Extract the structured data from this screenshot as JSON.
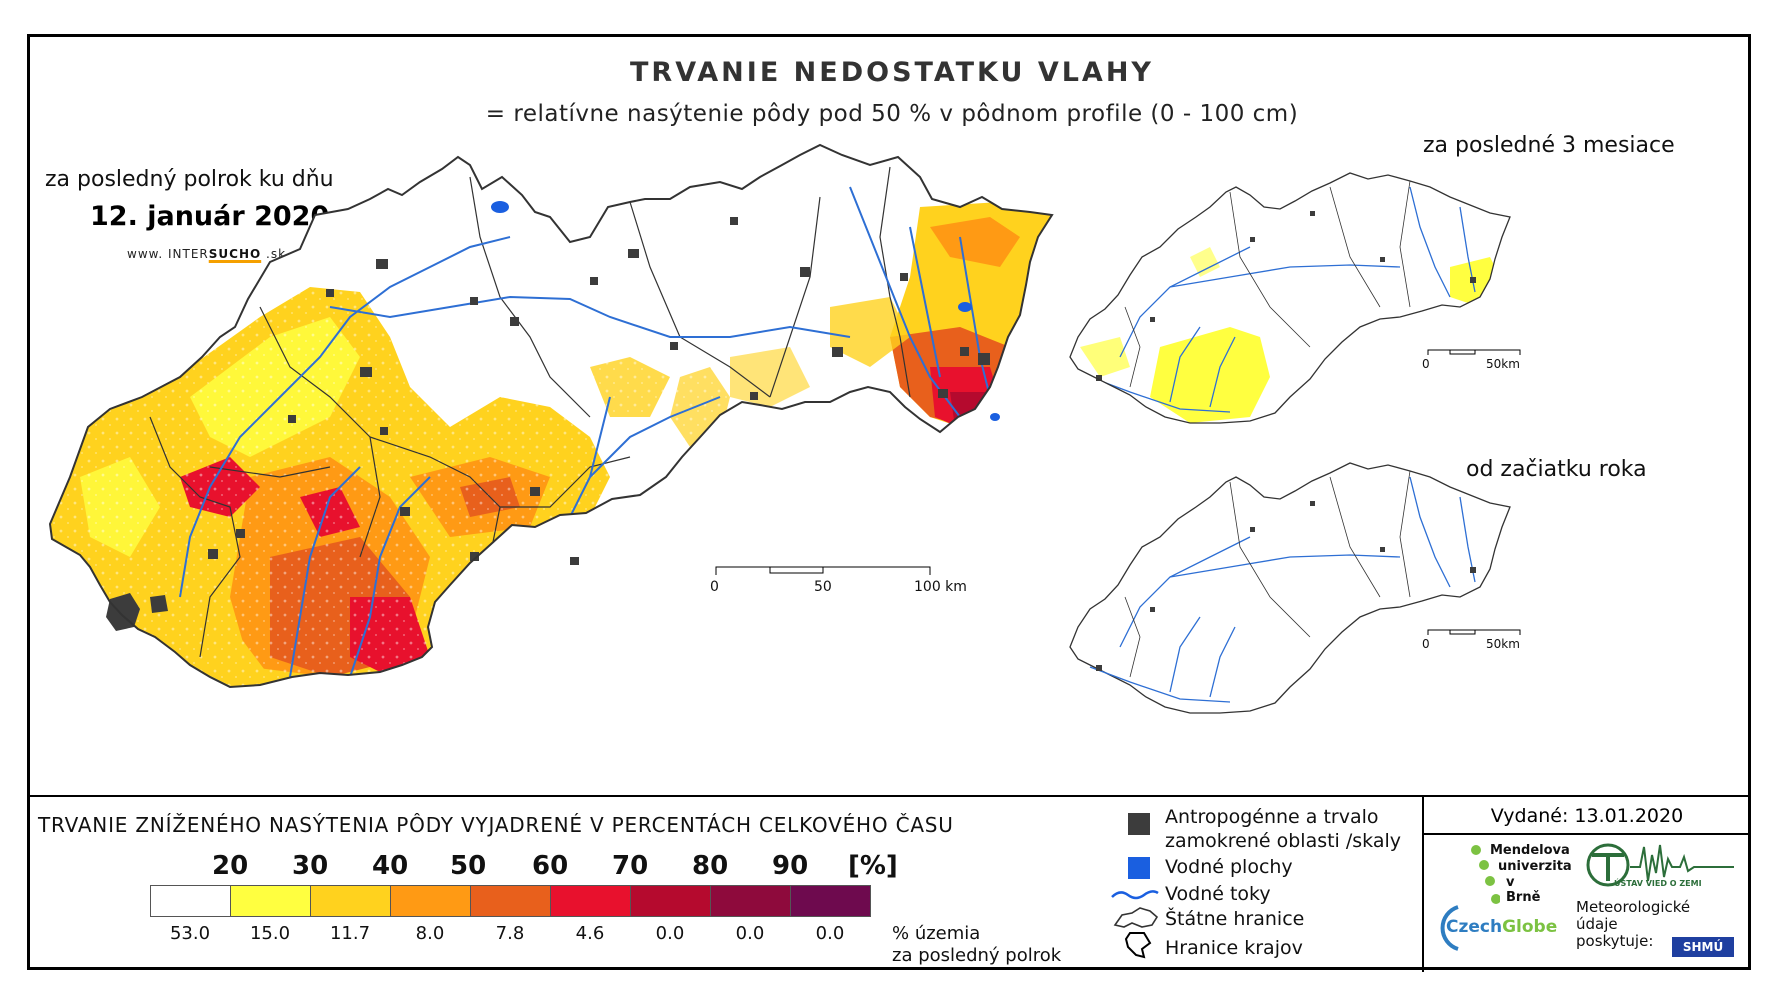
{
  "title": "TRVANIE NEDOSTATKU VLAHY",
  "subtitle": "= relatívne nasýtenie pôdy pod 50 % v pôdnom profile (0 - 100 cm)",
  "main_map": {
    "period_label": "za posledný polrok ku dňu",
    "date": "12. január 2020",
    "website": {
      "prefix": "www. INTER",
      "highlight": "SUCHO",
      "suffix": " .sk"
    },
    "scale": {
      "ticks": [
        "0",
        "50",
        "100 km"
      ]
    }
  },
  "inset_3m": {
    "label": "za posledné 3 mesiace",
    "scale": {
      "ticks": [
        "0",
        "50km"
      ]
    }
  },
  "inset_year": {
    "label": "od začiatku roka",
    "scale": {
      "ticks": [
        "0",
        "50km"
      ]
    }
  },
  "legend": {
    "title": "TRVANIE ZNÍŽENÉHO NASÝTENIA PÔDY VYJADRENÉ V PERCENTÁCH CELKOVÉHO ČASU",
    "breaks": [
      "20",
      "30",
      "40",
      "50",
      "60",
      "70",
      "80",
      "90",
      "[%]"
    ],
    "class_colors": [
      "#ffffff",
      "#ffff40",
      "#ffd21e",
      "#ff9a14",
      "#e8601c",
      "#e8112d",
      "#b50a2e",
      "#8e0a3c",
      "#6e0a4e"
    ],
    "area_percent": [
      "53.0",
      "15.0",
      "11.7",
      "8.0",
      "7.8",
      "4.6",
      "0.0",
      "0.0",
      "0.0"
    ],
    "area_label": [
      "% územia",
      "za posledný polrok"
    ],
    "symbols": {
      "anthropogenic": [
        "Antropogénne a trvalo",
        "zamokrené oblasti /skaly"
      ],
      "water_bodies": "Vodné plochy",
      "streams": "Vodné toky",
      "state_border": "Štátne hranice",
      "region_border": "Hranice krajov"
    }
  },
  "issued": "Vydané: 13.01.2020",
  "logos": {
    "mendel": [
      "Mendelova",
      "univerzita",
      "v Brně"
    ],
    "czechglobe": {
      "a": "Czech",
      "b": "Globe"
    },
    "ustav": "ÚSTAV VIED O ZEMI",
    "meteo": [
      "Meteorologické",
      "údaje",
      "poskytuje:"
    ],
    "shmu": "SHMÚ"
  },
  "colors": {
    "anthropogenic": "#3c3c3c",
    "water": "#1a5fe0",
    "river": "#2e6fd4",
    "border": "#333333"
  }
}
